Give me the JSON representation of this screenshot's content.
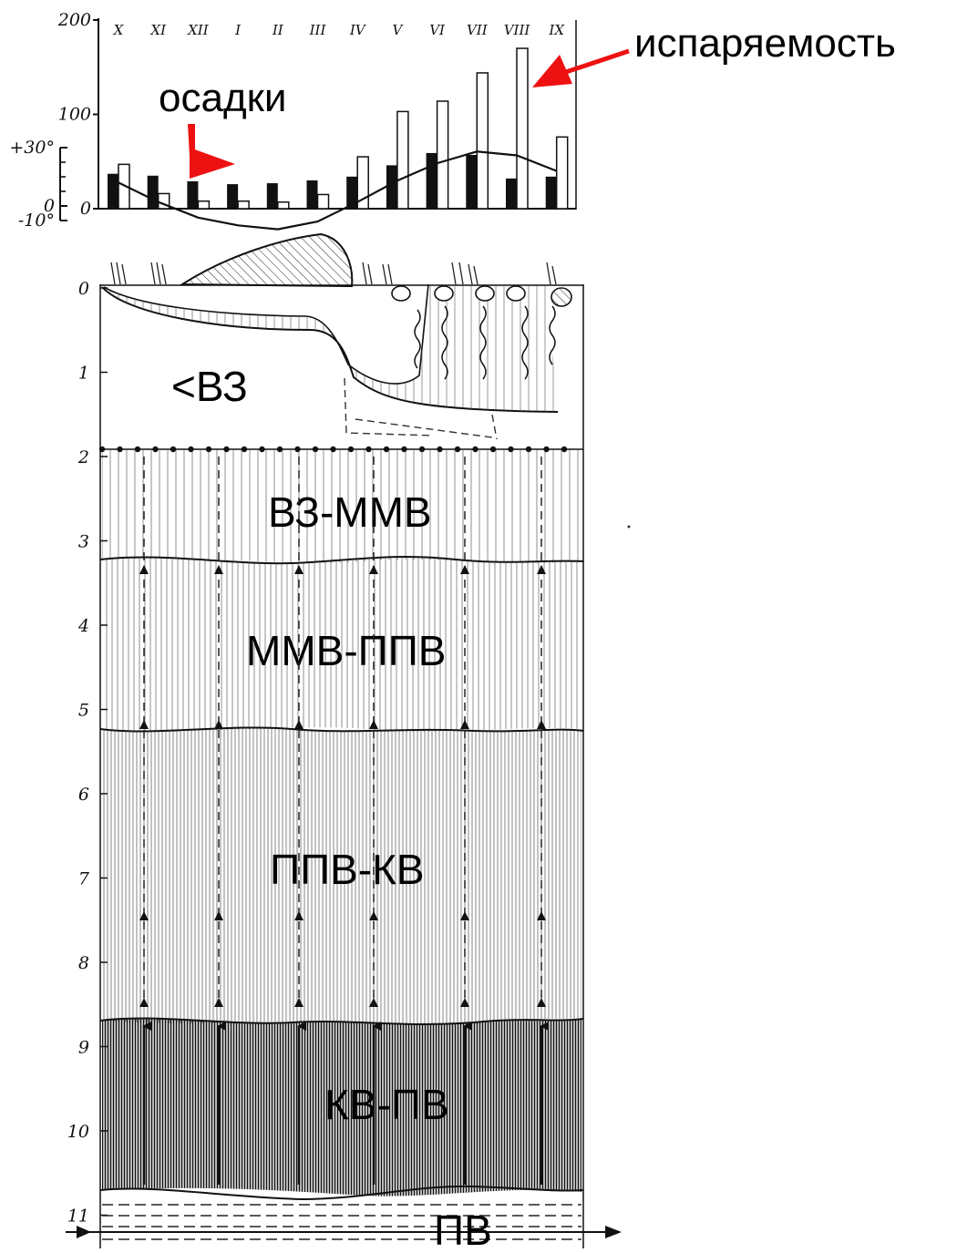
{
  "chart_data": {
    "type": "bar",
    "categories": [
      "X",
      "XI",
      "XII",
      "I",
      "II",
      "III",
      "IV",
      "V",
      "VI",
      "VII",
      "VIII",
      "IX"
    ],
    "series": [
      {
        "values": [
          37,
          35,
          29,
          26,
          27,
          30,
          34,
          46,
          59,
          57,
          32,
          34
        ]
      },
      {
        "values": [
          47,
          16,
          8,
          8,
          7,
          15,
          55,
          103,
          114,
          144,
          170,
          76
        ]
      }
    ],
    "temperature": [
      12,
      2,
      -6,
      -10,
      -12,
      -8,
      2,
      13,
      22,
      28,
      26,
      18
    ],
    "left_axis_labels": [
      "200",
      "100",
      "0"
    ],
    "temp_axis_labels": [
      "+30°",
      "0",
      "-10°"
    ],
    "ylim": [
      0,
      200
    ],
    "colors": {
      "precip": "#111111",
      "evap": "#ffffff",
      "annotation": "#ee1111"
    }
  },
  "labels": {
    "evaporation": "испаряемость",
    "precipitation": "осадки"
  },
  "depth_ticks": [
    "0",
    "1",
    "2",
    "3",
    "4",
    "5",
    "6",
    "7",
    "8",
    "9",
    "10",
    "11"
  ],
  "zones": {
    "z1": "<ВЗ",
    "z2": "ВЗ-ММВ",
    "z3": "ММВ-ППВ",
    "z4": "ППВ-КВ",
    "z5": "КВ-ПВ",
    "z6": "ПВ"
  }
}
